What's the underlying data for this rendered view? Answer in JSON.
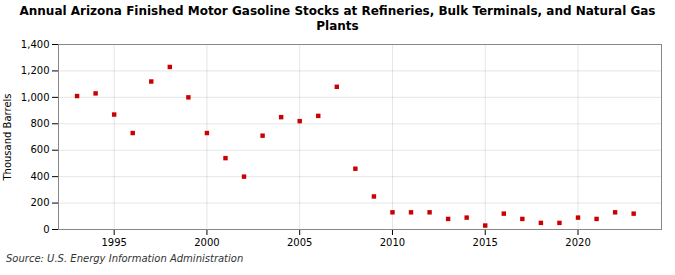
{
  "chart_data": {
    "type": "scatter",
    "title": "Annual Arizona Finished Motor Gasoline Stocks at Refineries, Bulk Terminals, and Natural Gas Plants",
    "ylabel": "Thousand Barrels",
    "source": "Source: U.S. Energy Information Administration",
    "x": [
      1993,
      1994,
      1995,
      1996,
      1997,
      1998,
      1999,
      2000,
      2001,
      2002,
      2003,
      2004,
      2005,
      2006,
      2007,
      2008,
      2009,
      2010,
      2011,
      2012,
      2013,
      2014,
      2015,
      2016,
      2017,
      2018,
      2019,
      2020,
      2021,
      2022,
      2023
    ],
    "values": [
      1010,
      1030,
      870,
      730,
      1120,
      1230,
      1000,
      730,
      540,
      400,
      710,
      850,
      820,
      860,
      1080,
      460,
      250,
      130,
      130,
      130,
      80,
      90,
      30,
      120,
      80,
      50,
      50,
      90,
      80,
      130,
      120
    ],
    "color": "#cc0000",
    "marker": "square",
    "xlim": [
      1992,
      2024.5
    ],
    "xticks": [
      1995,
      2000,
      2005,
      2010,
      2015,
      2020
    ],
    "ylim": [
      0,
      1400
    ],
    "yticks": [
      0,
      200,
      400,
      600,
      800,
      {
        "value": 1000,
        "label": "1,000"
      },
      {
        "value": 1200,
        "label": "1,200"
      },
      {
        "value": 1400,
        "label": "1,400"
      }
    ],
    "grid": true
  }
}
